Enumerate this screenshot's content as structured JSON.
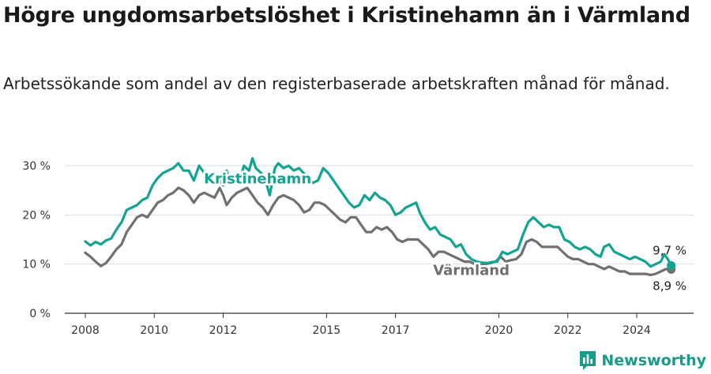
{
  "title": "Högre ungdomsarbetslöshet i Kristinehamn än i Värmland",
  "subtitle": "Arbetssökande som andel av den registerbaserade arbetskraften månad för månad.",
  "brand": "Newsworthy",
  "colors": {
    "kristinehamn": "#13a391",
    "varmland": "#707074",
    "grid": "#dddddd",
    "axis": "#333333"
  },
  "chart_data": {
    "type": "line",
    "xlim": [
      2007.5,
      2025.6
    ],
    "ylim": [
      0,
      30
    ],
    "x_ticks": [
      {
        "value": 2008,
        "label": "2008"
      },
      {
        "value": 2010,
        "label": "2010"
      },
      {
        "value": 2012,
        "label": "2012"
      },
      {
        "value": 2015,
        "label": "2015"
      },
      {
        "value": 2017,
        "label": "2017"
      },
      {
        "value": 2020,
        "label": "2020"
      },
      {
        "value": 2022,
        "label": "2022"
      },
      {
        "value": 2024,
        "label": "2024"
      }
    ],
    "y_ticks": [
      {
        "value": 0,
        "label": "0 %"
      },
      {
        "value": 10,
        "label": "10 %"
      },
      {
        "value": 20,
        "label": "20 %"
      },
      {
        "value": 30,
        "label": "30 %"
      }
    ],
    "series": [
      {
        "name": "Kristinehamn",
        "end_label": "9,7 %",
        "points": [
          [
            2008.0,
            14.6
          ],
          [
            2008.15,
            13.8
          ],
          [
            2008.3,
            14.5
          ],
          [
            2008.45,
            14.0
          ],
          [
            2008.6,
            14.8
          ],
          [
            2008.75,
            15.2
          ],
          [
            2008.9,
            17.0
          ],
          [
            2009.05,
            18.5
          ],
          [
            2009.2,
            21.0
          ],
          [
            2009.35,
            21.5
          ],
          [
            2009.5,
            22.0
          ],
          [
            2009.65,
            23.0
          ],
          [
            2009.8,
            23.5
          ],
          [
            2009.95,
            26.0
          ],
          [
            2010.1,
            27.5
          ],
          [
            2010.25,
            28.5
          ],
          [
            2010.4,
            29.0
          ],
          [
            2010.55,
            29.5
          ],
          [
            2010.7,
            30.5
          ],
          [
            2010.85,
            29.0
          ],
          [
            2011.0,
            29.0
          ],
          [
            2011.15,
            27.0
          ],
          [
            2011.3,
            30.0
          ],
          [
            2011.45,
            28.5
          ],
          [
            2011.6,
            28.0
          ],
          [
            2011.75,
            28.5
          ],
          [
            2011.9,
            27.0
          ],
          [
            2012.0,
            26.0
          ],
          [
            2012.1,
            29.0
          ],
          [
            2012.2,
            26.5
          ],
          [
            2012.35,
            28.0
          ],
          [
            2012.5,
            27.5
          ],
          [
            2012.6,
            30.0
          ],
          [
            2012.75,
            29.0
          ],
          [
            2012.85,
            31.5
          ],
          [
            2012.95,
            29.5
          ],
          [
            2013.1,
            28.5
          ],
          [
            2013.25,
            26.5
          ],
          [
            2013.35,
            24.0
          ],
          [
            2013.5,
            29.5
          ],
          [
            2013.6,
            30.5
          ],
          [
            2013.75,
            29.5
          ],
          [
            2013.9,
            30.0
          ],
          [
            2014.05,
            29.0
          ],
          [
            2014.2,
            29.5
          ],
          [
            2014.4,
            28.0
          ],
          [
            2014.6,
            26.5
          ],
          [
            2014.75,
            27.0
          ],
          [
            2014.9,
            29.5
          ],
          [
            2015.05,
            28.5
          ],
          [
            2015.2,
            27.0
          ],
          [
            2015.35,
            25.5
          ],
          [
            2015.5,
            24.0
          ],
          [
            2015.65,
            22.5
          ],
          [
            2015.8,
            21.5
          ],
          [
            2015.95,
            22.0
          ],
          [
            2016.1,
            24.0
          ],
          [
            2016.25,
            23.0
          ],
          [
            2016.4,
            24.5
          ],
          [
            2016.55,
            23.5
          ],
          [
            2016.7,
            23.0
          ],
          [
            2016.85,
            22.0
          ],
          [
            2017.0,
            20.0
          ],
          [
            2017.15,
            20.5
          ],
          [
            2017.3,
            21.5
          ],
          [
            2017.45,
            22.0
          ],
          [
            2017.6,
            22.5
          ],
          [
            2017.7,
            20.5
          ],
          [
            2017.85,
            18.5
          ],
          [
            2018.0,
            17.0
          ],
          [
            2018.15,
            17.5
          ],
          [
            2018.3,
            16.0
          ],
          [
            2018.45,
            15.5
          ],
          [
            2018.6,
            15.0
          ],
          [
            2018.75,
            13.5
          ],
          [
            2018.9,
            14.0
          ],
          [
            2019.05,
            12.0
          ],
          [
            2019.2,
            11.0
          ],
          [
            2019.35,
            10.5
          ],
          [
            2019.5,
            10.3
          ],
          [
            2019.65,
            10.2
          ],
          [
            2019.8,
            10.4
          ],
          [
            2019.95,
            10.5
          ],
          [
            2020.1,
            12.5
          ],
          [
            2020.25,
            12.0
          ],
          [
            2020.4,
            12.5
          ],
          [
            2020.55,
            13.0
          ],
          [
            2020.7,
            16.0
          ],
          [
            2020.85,
            18.5
          ],
          [
            2021.0,
            19.5
          ],
          [
            2021.15,
            18.5
          ],
          [
            2021.3,
            17.5
          ],
          [
            2021.45,
            18.0
          ],
          [
            2021.6,
            17.5
          ],
          [
            2021.75,
            17.5
          ],
          [
            2021.9,
            15.0
          ],
          [
            2022.05,
            14.5
          ],
          [
            2022.2,
            13.5
          ],
          [
            2022.35,
            13.0
          ],
          [
            2022.5,
            13.5
          ],
          [
            2022.65,
            13.0
          ],
          [
            2022.8,
            12.0
          ],
          [
            2022.95,
            11.5
          ],
          [
            2023.05,
            13.5
          ],
          [
            2023.2,
            14.0
          ],
          [
            2023.35,
            12.5
          ],
          [
            2023.5,
            12.0
          ],
          [
            2023.65,
            11.5
          ],
          [
            2023.8,
            11.0
          ],
          [
            2023.95,
            11.5
          ],
          [
            2024.1,
            11.0
          ],
          [
            2024.25,
            10.5
          ],
          [
            2024.4,
            9.5
          ],
          [
            2024.55,
            10.0
          ],
          [
            2024.7,
            10.5
          ],
          [
            2024.8,
            12.0
          ],
          [
            2024.9,
            11.0
          ],
          [
            2025.0,
            9.7
          ]
        ]
      },
      {
        "name": "Värmland",
        "end_label": "8,9 %",
        "points": [
          [
            2008.0,
            12.3
          ],
          [
            2008.15,
            11.5
          ],
          [
            2008.3,
            10.5
          ],
          [
            2008.45,
            9.6
          ],
          [
            2008.6,
            10.2
          ],
          [
            2008.75,
            11.5
          ],
          [
            2008.9,
            13.0
          ],
          [
            2009.05,
            14.0
          ],
          [
            2009.2,
            16.5
          ],
          [
            2009.35,
            18.0
          ],
          [
            2009.5,
            19.5
          ],
          [
            2009.65,
            20.0
          ],
          [
            2009.8,
            19.5
          ],
          [
            2009.95,
            21.0
          ],
          [
            2010.1,
            22.5
          ],
          [
            2010.25,
            23.0
          ],
          [
            2010.4,
            24.0
          ],
          [
            2010.55,
            24.5
          ],
          [
            2010.7,
            25.5
          ],
          [
            2010.85,
            25.0
          ],
          [
            2011.0,
            24.0
          ],
          [
            2011.15,
            22.5
          ],
          [
            2011.3,
            24.0
          ],
          [
            2011.45,
            24.5
          ],
          [
            2011.6,
            24.0
          ],
          [
            2011.75,
            23.5
          ],
          [
            2011.9,
            25.5
          ],
          [
            2012.0,
            24.0
          ],
          [
            2012.1,
            22.0
          ],
          [
            2012.25,
            23.5
          ],
          [
            2012.4,
            24.5
          ],
          [
            2012.55,
            25.0
          ],
          [
            2012.7,
            25.5
          ],
          [
            2012.85,
            24.0
          ],
          [
            2013.0,
            22.5
          ],
          [
            2013.15,
            21.5
          ],
          [
            2013.3,
            20.0
          ],
          [
            2013.45,
            22.0
          ],
          [
            2013.6,
            23.5
          ],
          [
            2013.75,
            24.0
          ],
          [
            2013.9,
            23.5
          ],
          [
            2014.05,
            23.0
          ],
          [
            2014.2,
            22.0
          ],
          [
            2014.35,
            20.5
          ],
          [
            2014.5,
            21.0
          ],
          [
            2014.65,
            22.5
          ],
          [
            2014.8,
            22.5
          ],
          [
            2014.95,
            22.0
          ],
          [
            2015.1,
            21.0
          ],
          [
            2015.25,
            20.0
          ],
          [
            2015.4,
            19.0
          ],
          [
            2015.55,
            18.5
          ],
          [
            2015.7,
            19.5
          ],
          [
            2015.85,
            19.5
          ],
          [
            2016.0,
            18.0
          ],
          [
            2016.15,
            16.5
          ],
          [
            2016.3,
            16.5
          ],
          [
            2016.45,
            17.5
          ],
          [
            2016.6,
            17.0
          ],
          [
            2016.75,
            17.5
          ],
          [
            2016.9,
            16.5
          ],
          [
            2017.05,
            15.0
          ],
          [
            2017.2,
            14.5
          ],
          [
            2017.35,
            15.0
          ],
          [
            2017.5,
            15.0
          ],
          [
            2017.65,
            15.0
          ],
          [
            2017.8,
            14.0
          ],
          [
            2017.95,
            13.0
          ],
          [
            2018.1,
            11.5
          ],
          [
            2018.25,
            12.5
          ],
          [
            2018.4,
            12.5
          ],
          [
            2018.55,
            12.0
          ],
          [
            2018.7,
            11.5
          ],
          [
            2018.85,
            11.0
          ],
          [
            2019.0,
            10.5
          ],
          [
            2019.15,
            10.5
          ],
          [
            2019.3,
            10.0
          ],
          [
            2019.45,
            10.0
          ],
          [
            2019.6,
            10.0
          ],
          [
            2019.75,
            10.2
          ],
          [
            2019.9,
            10.5
          ],
          [
            2020.05,
            11.5
          ],
          [
            2020.2,
            10.5
          ],
          [
            2020.35,
            10.8
          ],
          [
            2020.5,
            11.0
          ],
          [
            2020.65,
            12.0
          ],
          [
            2020.8,
            14.5
          ],
          [
            2020.95,
            15.0
          ],
          [
            2021.1,
            14.5
          ],
          [
            2021.25,
            13.5
          ],
          [
            2021.4,
            13.5
          ],
          [
            2021.55,
            13.5
          ],
          [
            2021.7,
            13.5
          ],
          [
            2021.85,
            12.5
          ],
          [
            2022.0,
            11.5
          ],
          [
            2022.15,
            11.0
          ],
          [
            2022.3,
            11.0
          ],
          [
            2022.45,
            10.5
          ],
          [
            2022.6,
            10.0
          ],
          [
            2022.75,
            10.0
          ],
          [
            2022.9,
            9.5
          ],
          [
            2023.05,
            9.0
          ],
          [
            2023.2,
            9.5
          ],
          [
            2023.35,
            9.0
          ],
          [
            2023.5,
            8.5
          ],
          [
            2023.65,
            8.5
          ],
          [
            2023.8,
            8.0
          ],
          [
            2023.95,
            8.0
          ],
          [
            2024.1,
            8.0
          ],
          [
            2024.25,
            8.0
          ],
          [
            2024.4,
            7.8
          ],
          [
            2024.55,
            8.0
          ],
          [
            2024.7,
            8.5
          ],
          [
            2024.85,
            9.0
          ],
          [
            2025.0,
            8.9
          ]
        ]
      }
    ],
    "series_labels": [
      {
        "series": "Kristinehamn",
        "text": "Kristinehamn",
        "x": 2013.0,
        "y": 27.5
      },
      {
        "series": "Värmland",
        "text": "Värmland",
        "x": 2019.2,
        "y": 8.9
      }
    ]
  }
}
